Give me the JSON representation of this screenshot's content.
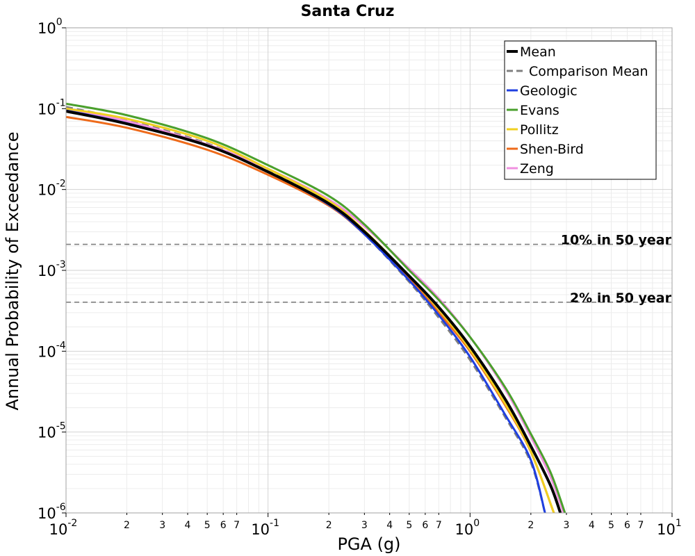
{
  "chart_data": {
    "type": "line",
    "title": "Santa Cruz",
    "xlabel": "PGA (g)",
    "ylabel": "Annual Probability of Exceedance",
    "x_scale": "log",
    "y_scale": "log",
    "xlim": [
      0.01,
      10
    ],
    "ylim": [
      1e-06,
      1
    ],
    "grid": true,
    "legend_position": "top-right",
    "x_ticks": [
      {
        "base": "10",
        "exp": "-2"
      },
      {
        "base": "10",
        "exp": "-1"
      },
      {
        "base": "10",
        "exp": "0"
      },
      {
        "base": "10",
        "exp": "1"
      }
    ],
    "y_ticks": [
      {
        "base": "10",
        "exp": "0"
      },
      {
        "base": "10",
        "exp": "-1"
      },
      {
        "base": "10",
        "exp": "-2"
      },
      {
        "base": "10",
        "exp": "-3"
      },
      {
        "base": "10",
        "exp": "-4"
      },
      {
        "base": "10",
        "exp": "-5"
      },
      {
        "base": "10",
        "exp": "-6"
      }
    ],
    "x_minor_labels": [
      "2",
      "3",
      "4",
      "5",
      "6",
      "7"
    ],
    "reference_lines": [
      {
        "label": "10% in 50 year",
        "y": 0.0021,
        "color": "#808080"
      },
      {
        "label": "2% in 50 year",
        "y": 0.000404,
        "color": "#808080"
      }
    ],
    "series": [
      {
        "name": "Mean",
        "color": "#000000",
        "dashed": false,
        "points": [
          [
            0.01,
            0.093
          ],
          [
            0.02,
            0.065
          ],
          [
            0.05,
            0.035
          ],
          [
            0.1,
            0.0165
          ],
          [
            0.2,
            0.0067
          ],
          [
            0.3,
            0.003
          ],
          [
            0.5,
            0.00085
          ],
          [
            0.7,
            0.00035
          ],
          [
            1.0,
            0.000115
          ],
          [
            1.5,
            2.5e-05
          ],
          [
            2.0,
            6.7e-06
          ],
          [
            2.5,
            2.2e-06
          ],
          [
            2.8,
            1e-06
          ]
        ]
      },
      {
        "name": "Comparison Mean",
        "color": "#808080",
        "dashed": true,
        "points": [
          [
            0.01,
            0.105
          ],
          [
            0.02,
            0.072
          ],
          [
            0.05,
            0.037
          ],
          [
            0.1,
            0.017
          ],
          [
            0.2,
            0.0066
          ],
          [
            0.3,
            0.0028
          ],
          [
            0.5,
            0.00072
          ],
          [
            0.7,
            0.00026
          ],
          [
            1.0,
            7.8e-05
          ],
          [
            1.5,
            1.5e-05
          ],
          [
            2.0,
            4.2e-06
          ],
          [
            2.35,
            1e-06
          ]
        ]
      },
      {
        "name": "Geologic",
        "color": "#1f3fe0",
        "dashed": false,
        "points": [
          [
            0.01,
            0.095
          ],
          [
            0.02,
            0.066
          ],
          [
            0.05,
            0.035
          ],
          [
            0.1,
            0.0165
          ],
          [
            0.2,
            0.0065
          ],
          [
            0.3,
            0.0028
          ],
          [
            0.5,
            0.00075
          ],
          [
            0.7,
            0.00028
          ],
          [
            1.0,
            8.5e-05
          ],
          [
            1.5,
            1.6e-05
          ],
          [
            2.0,
            4.5e-06
          ],
          [
            2.35,
            1e-06
          ]
        ]
      },
      {
        "name": "Evans",
        "color": "#4aa02c",
        "dashed": false,
        "points": [
          [
            0.01,
            0.115
          ],
          [
            0.02,
            0.083
          ],
          [
            0.05,
            0.043
          ],
          [
            0.1,
            0.02
          ],
          [
            0.2,
            0.0083
          ],
          [
            0.3,
            0.0037
          ],
          [
            0.5,
            0.001
          ],
          [
            0.7,
            0.00043
          ],
          [
            1.0,
            0.00015
          ],
          [
            1.5,
            3.5e-05
          ],
          [
            2.0,
            9.5e-06
          ],
          [
            2.5,
            3.2e-06
          ],
          [
            2.95,
            1e-06
          ]
        ]
      },
      {
        "name": "Pollitz",
        "color": "#f0d020",
        "dashed": false,
        "points": [
          [
            0.01,
            0.1
          ],
          [
            0.02,
            0.075
          ],
          [
            0.05,
            0.04
          ],
          [
            0.1,
            0.018
          ],
          [
            0.2,
            0.0072
          ],
          [
            0.3,
            0.0031
          ],
          [
            0.5,
            0.00085
          ],
          [
            0.7,
            0.00033
          ],
          [
            1.0,
            0.000105
          ],
          [
            1.5,
            2.2e-05
          ],
          [
            2.0,
            5.8e-06
          ],
          [
            2.6,
            1e-06
          ]
        ]
      },
      {
        "name": "Shen-Bird",
        "color": "#ee6a1a",
        "dashed": false,
        "points": [
          [
            0.01,
            0.079
          ],
          [
            0.02,
            0.058
          ],
          [
            0.05,
            0.031
          ],
          [
            0.1,
            0.0152
          ],
          [
            0.2,
            0.0063
          ],
          [
            0.3,
            0.0028
          ],
          [
            0.5,
            0.0008
          ],
          [
            0.7,
            0.0003
          ],
          [
            1.0,
            0.0001
          ],
          [
            1.5,
            2.1e-05
          ],
          [
            2.0,
            5.7e-06
          ],
          [
            2.6,
            1e-06
          ]
        ]
      },
      {
        "name": "Zeng",
        "color": "#f090e0",
        "dashed": false,
        "points": [
          [
            0.01,
            0.1
          ],
          [
            0.02,
            0.07
          ],
          [
            0.05,
            0.036
          ],
          [
            0.1,
            0.018
          ],
          [
            0.2,
            0.0075
          ],
          [
            0.3,
            0.0035
          ],
          [
            0.5,
            0.00105
          ],
          [
            0.7,
            0.00045
          ],
          [
            1.0,
            0.00015
          ],
          [
            1.5,
            3.3e-05
          ],
          [
            2.0,
            8.7e-06
          ],
          [
            2.5,
            2.8e-06
          ],
          [
            2.9,
            1e-06
          ]
        ]
      }
    ]
  }
}
